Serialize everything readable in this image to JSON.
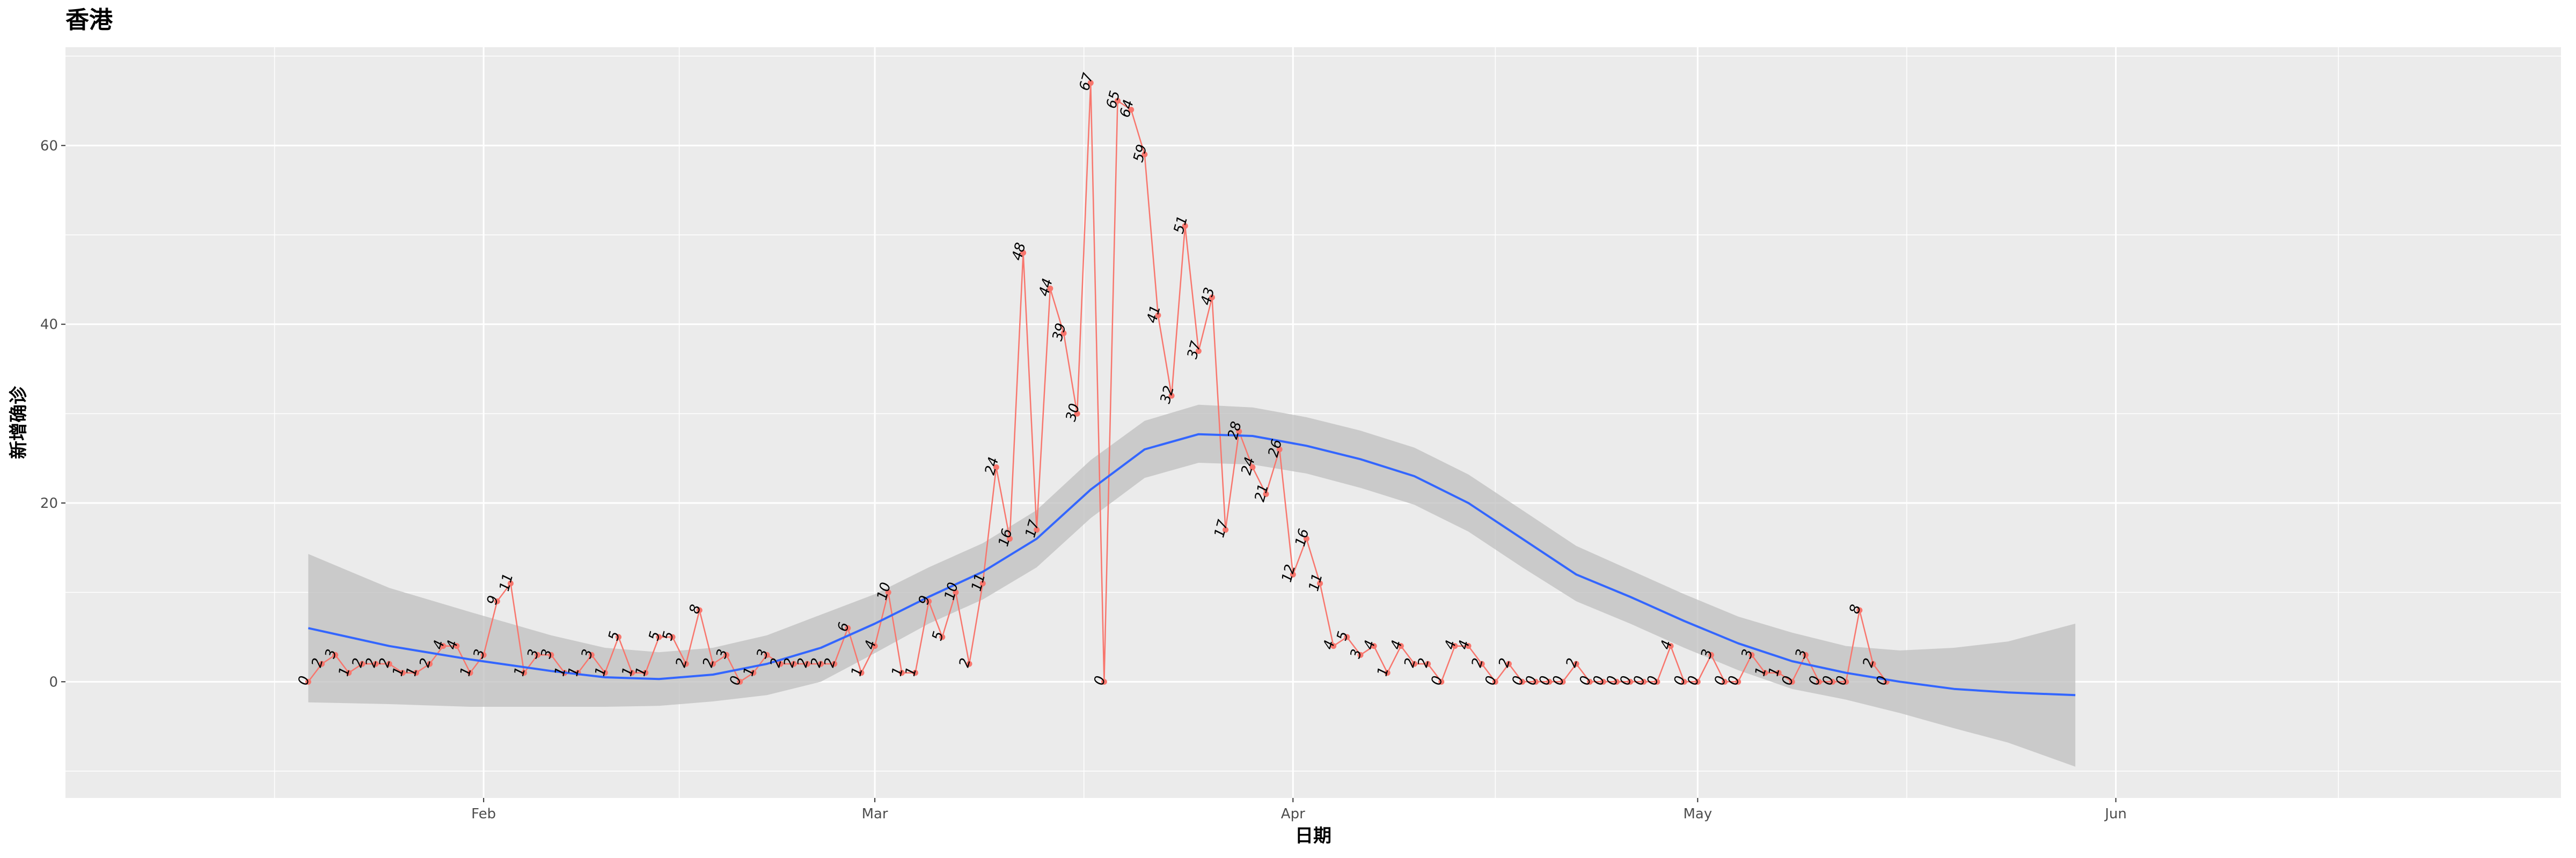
{
  "chart_data": {
    "type": "line",
    "title": "香港",
    "xlabel": "日期",
    "ylabel": "新增确诊",
    "x_tick_labels": [
      "Feb",
      "Mar",
      "Apr",
      "May",
      "Jun"
    ],
    "x_tick_days": [
      31,
      60,
      91,
      121,
      152
    ],
    "x_range_days": [
      0,
      185
    ],
    "y_ticks": [
      0,
      20,
      40,
      60
    ],
    "ylim": [
      -13,
      71
    ],
    "start_day": 18,
    "series": [
      {
        "name": "新增确诊",
        "color": "#f8766d",
        "values": [
          0,
          2,
          3,
          1,
          2,
          2,
          2,
          1,
          1,
          2,
          4,
          4,
          1,
          3,
          9,
          11,
          1,
          3,
          3,
          1,
          1,
          3,
          1,
          5,
          1,
          1,
          5,
          5,
          2,
          8,
          2,
          3,
          0,
          1,
          3,
          2,
          2,
          2,
          2,
          2,
          6,
          1,
          4,
          10,
          1,
          1,
          9,
          5,
          10,
          2,
          11,
          24,
          16,
          48,
          17,
          44,
          39,
          30,
          67,
          0,
          65,
          64,
          59,
          41,
          32,
          51,
          37,
          43,
          17,
          28,
          24,
          21,
          26,
          12,
          16,
          11,
          4,
          5,
          3,
          4,
          1,
          4,
          2,
          2,
          0,
          4,
          4,
          2,
          0,
          2,
          0,
          0,
          0,
          0,
          2,
          0,
          0,
          0,
          0,
          0,
          0,
          4,
          0,
          0,
          3,
          0,
          0,
          3,
          1,
          1,
          0,
          3,
          0,
          0,
          0,
          8,
          2,
          0
        ]
      },
      {
        "name": "平滑趋势",
        "color": "#3366ff",
        "band_color": "#bfbfbf",
        "points": [
          {
            "day": 18,
            "value": 6.0,
            "low": -2.3,
            "high": 14.3
          },
          {
            "day": 24,
            "value": 4.0,
            "low": -2.5,
            "high": 10.5
          },
          {
            "day": 30,
            "value": 2.5,
            "low": -2.8,
            "high": 7.8
          },
          {
            "day": 36,
            "value": 1.2,
            "low": -2.8,
            "high": 5.2
          },
          {
            "day": 40,
            "value": 0.5,
            "low": -2.8,
            "high": 3.8
          },
          {
            "day": 44,
            "value": 0.3,
            "low": -2.7,
            "high": 3.3
          },
          {
            "day": 48,
            "value": 0.8,
            "low": -2.2,
            "high": 3.8
          },
          {
            "day": 52,
            "value": 2.0,
            "low": -1.5,
            "high": 5.2
          },
          {
            "day": 56,
            "value": 3.8,
            "low": 0.0,
            "high": 7.5
          },
          {
            "day": 60,
            "value": 6.5,
            "low": 3.2,
            "high": 9.8
          },
          {
            "day": 64,
            "value": 9.5,
            "low": 6.5,
            "high": 12.8
          },
          {
            "day": 68,
            "value": 12.3,
            "low": 9.2,
            "high": 15.5
          },
          {
            "day": 72,
            "value": 16.0,
            "low": 12.8,
            "high": 19.2
          },
          {
            "day": 76,
            "value": 21.5,
            "low": 18.3,
            "high": 24.8
          },
          {
            "day": 80,
            "value": 26.0,
            "low": 22.8,
            "high": 29.2
          },
          {
            "day": 84,
            "value": 27.7,
            "low": 24.5,
            "high": 31.0
          },
          {
            "day": 88,
            "value": 27.5,
            "low": 24.3,
            "high": 30.7
          },
          {
            "day": 92,
            "value": 26.4,
            "low": 23.3,
            "high": 29.6
          },
          {
            "day": 96,
            "value": 24.9,
            "low": 21.7,
            "high": 28.1
          },
          {
            "day": 100,
            "value": 23.0,
            "low": 19.8,
            "high": 26.2
          },
          {
            "day": 104,
            "value": 20.0,
            "low": 16.8,
            "high": 23.2
          },
          {
            "day": 108,
            "value": 16.0,
            "low": 12.8,
            "high": 19.2
          },
          {
            "day": 112,
            "value": 12.0,
            "low": 9.0,
            "high": 15.2
          },
          {
            "day": 116,
            "value": 9.5,
            "low": 6.5,
            "high": 12.5
          },
          {
            "day": 120,
            "value": 6.8,
            "low": 3.8,
            "high": 9.8
          },
          {
            "day": 124,
            "value": 4.3,
            "low": 1.3,
            "high": 7.3
          },
          {
            "day": 128,
            "value": 2.3,
            "low": -0.8,
            "high": 5.5
          },
          {
            "day": 132,
            "value": 1.0,
            "low": -2.0,
            "high": 4.0
          },
          {
            "day": 136,
            "value": 0.0,
            "low": -3.5,
            "high": 3.5
          },
          {
            "day": 140,
            "value": -0.8,
            "low": -5.2,
            "high": 3.8
          },
          {
            "day": 144,
            "value": -1.2,
            "low": -6.8,
            "high": 4.5
          },
          {
            "day": 149,
            "value": -1.5,
            "low": -9.5,
            "high": 6.5
          }
        ]
      }
    ],
    "legend": "none",
    "grid": true
  },
  "colors": {
    "panel_background": "#ebebeb",
    "grid_line": "#ffffff"
  }
}
